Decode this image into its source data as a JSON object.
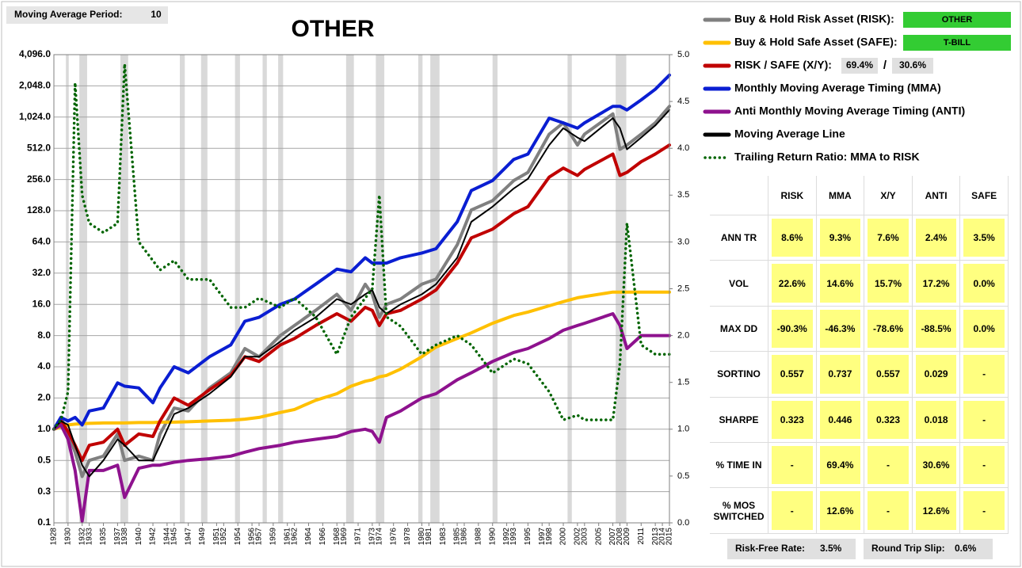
{
  "chart_data": {
    "type": "line",
    "title": "OTHER",
    "settings_box": {
      "label": "Moving Average Period:",
      "value": "10"
    },
    "x": [
      1928,
      1929,
      1930,
      1931,
      1932,
      1933,
      1935,
      1937,
      1938,
      1940,
      1942,
      1943,
      1945,
      1947,
      1950,
      1953,
      1955,
      1957,
      1960,
      1962,
      1965,
      1968,
      1970,
      1972,
      1973,
      1974,
      1975,
      1977,
      1980,
      1982,
      1985,
      1987,
      1990,
      1993,
      1995,
      1998,
      2000,
      2002,
      2003,
      2007,
      2008,
      2009,
      2011,
      2013,
      2015
    ],
    "xlim": [
      1928,
      2015
    ],
    "xticks": [
      1928,
      1930,
      1932,
      1933,
      1935,
      1937,
      1938,
      1940,
      1942,
      1944,
      1945,
      1947,
      1949,
      1951,
      1952,
      1954,
      1956,
      1957,
      1959,
      1961,
      1962,
      1964,
      1966,
      1968,
      1969,
      1971,
      1973,
      1974,
      1976,
      1978,
      1980,
      1981,
      1983,
      1985,
      1986,
      1988,
      1990,
      1992,
      1993,
      1995,
      1997,
      1998,
      2000,
      2002,
      2003,
      2005,
      2007,
      2008,
      2009,
      2011,
      2013,
      2014,
      2015
    ],
    "yscale": "log",
    "ylim": [
      0.125,
      4096
    ],
    "yticks": [
      {
        "value": 0.125,
        "label": "0.1"
      },
      {
        "value": 0.25,
        "label": "0.3"
      },
      0.5,
      {
        "value": 1,
        "label": "1.0"
      },
      {
        "value": 2,
        "label": "2.0"
      },
      {
        "value": 4,
        "label": "4.0"
      },
      {
        "value": 8,
        "label": "8.0"
      },
      {
        "value": 16,
        "label": "16.0"
      },
      {
        "value": 32,
        "label": "32.0"
      },
      {
        "value": 64,
        "label": "64.0"
      },
      {
        "value": 128,
        "label": "128.0"
      },
      {
        "value": 256,
        "label": "256.0"
      },
      {
        "value": 512,
        "label": "512.0"
      },
      {
        "value": 1024,
        "label": "1,024.0"
      },
      {
        "value": 2048,
        "label": "2,048.0"
      },
      {
        "value": 4096,
        "label": "4,096.0"
      }
    ],
    "y2lim": [
      0,
      5
    ],
    "y2ticks": [
      {
        "value": 0,
        "label": "0.0"
      },
      0.5,
      {
        "value": 1,
        "label": "1.0"
      },
      1.5,
      {
        "value": 2,
        "label": "2.0"
      },
      2.5,
      {
        "value": 3,
        "label": "3.0"
      },
      3.5,
      {
        "value": 4,
        "label": "4.0"
      },
      4.5,
      {
        "value": 5,
        "label": "5.0"
      }
    ],
    "grid": true,
    "shaded_color": "#d9d9d9",
    "shaded_periods": [
      [
        1929.7,
        1930.1
      ],
      [
        1931.6,
        1932.7
      ],
      [
        1937.4,
        1938.5
      ],
      [
        1945.8,
        1946.5
      ],
      [
        1948.8,
        1949.7
      ],
      [
        1953.6,
        1954.3
      ],
      [
        1957.5,
        1958.1
      ],
      [
        1959.7,
        1960.4
      ],
      [
        1969.3,
        1970.4
      ],
      [
        1973.5,
        1974.7
      ],
      [
        1979.5,
        1980.1
      ],
      [
        1981.2,
        1982.5
      ],
      [
        1990.0,
        1990.7
      ],
      [
        2000.6,
        2001.2
      ],
      [
        2007.4,
        2008.9
      ]
    ],
    "series": [
      {
        "name": "Buy & Hold Risk Asset (RISK):",
        "color": "#808080",
        "values": [
          1.0,
          1.3,
          0.9,
          0.6,
          0.35,
          0.5,
          0.55,
          0.9,
          0.5,
          0.55,
          0.5,
          0.9,
          1.6,
          1.5,
          2.5,
          3.5,
          6,
          5,
          8,
          10,
          14,
          20,
          14,
          25,
          20,
          12,
          16,
          18,
          25,
          28,
          60,
          130,
          160,
          250,
          300,
          700,
          900,
          550,
          700,
          1100,
          500,
          550,
          700,
          900,
          1300
        ]
      },
      {
        "name": "Buy & Hold Safe Asset (SAFE):",
        "color": "#ffc000",
        "values": [
          1.0,
          1.05,
          1.1,
          1.12,
          1.13,
          1.14,
          1.15,
          1.15,
          1.15,
          1.16,
          1.16,
          1.17,
          1.17,
          1.18,
          1.2,
          1.22,
          1.25,
          1.3,
          1.45,
          1.55,
          1.9,
          2.2,
          2.6,
          2.9,
          3.0,
          3.2,
          3.3,
          3.8,
          5,
          6.2,
          7.5,
          8.5,
          10.5,
          12.5,
          13.5,
          15.5,
          17,
          18.5,
          19,
          21,
          21,
          21,
          21,
          21,
          21
        ]
      },
      {
        "name": "RISK / SAFE (X/Y):",
        "color": "#c00000",
        "values": [
          1.0,
          1.2,
          0.95,
          0.7,
          0.5,
          0.7,
          0.75,
          1.0,
          0.7,
          0.9,
          0.85,
          1.2,
          2.0,
          1.7,
          2.4,
          3.3,
          5,
          4.5,
          6.5,
          7.5,
          10,
          13,
          11,
          15,
          14,
          10,
          13,
          14,
          18,
          22,
          40,
          70,
          85,
          120,
          140,
          270,
          330,
          280,
          320,
          450,
          280,
          300,
          380,
          450,
          550
        ]
      },
      {
        "name": "Monthly Moving Average Timing (MMA)",
        "color": "#0a1ed2",
        "values": [
          1.0,
          1.3,
          1.2,
          1.3,
          1.1,
          1.5,
          1.6,
          2.8,
          2.6,
          2.5,
          1.8,
          2.5,
          4,
          3.5,
          5,
          6.5,
          11,
          12,
          16,
          18,
          25,
          35,
          33,
          45,
          40,
          40,
          40,
          45,
          50,
          55,
          100,
          200,
          250,
          400,
          450,
          1000,
          900,
          800,
          900,
          1300,
          1300,
          1200,
          1500,
          1900,
          2600
        ]
      },
      {
        "name": "Anti Monthly Moving Average Timing (ANTI)",
        "color": "#8e128e",
        "values": [
          1.0,
          1.1,
          0.8,
          0.4,
          0.13,
          0.4,
          0.4,
          0.45,
          0.22,
          0.42,
          0.45,
          0.45,
          0.48,
          0.5,
          0.52,
          0.55,
          0.6,
          0.65,
          0.7,
          0.75,
          0.8,
          0.85,
          0.95,
          1.0,
          0.95,
          0.75,
          1.3,
          1.5,
          2.0,
          2.2,
          3,
          3.5,
          4.5,
          5.5,
          6,
          7.5,
          9,
          10,
          10.5,
          13,
          10,
          6,
          8,
          8,
          8
        ]
      },
      {
        "name": "Moving Average Line",
        "color": "#000000",
        "values": [
          1.0,
          1.2,
          1.1,
          0.7,
          0.45,
          0.35,
          0.5,
          0.8,
          0.7,
          0.5,
          0.5,
          0.7,
          1.4,
          1.6,
          2.2,
          3.2,
          5,
          5,
          7,
          9,
          12,
          18,
          16,
          20,
          22,
          15,
          13,
          16,
          20,
          25,
          45,
          100,
          140,
          210,
          260,
          550,
          800,
          650,
          600,
          1000,
          800,
          500,
          650,
          850,
          1200
        ]
      },
      {
        "name": "Trailing Return Ratio: MMA to RISK",
        "color": "#006400",
        "axis": "y2",
        "line_style": "dotted",
        "values": [
          1.0,
          1.1,
          1.4,
          4.7,
          3.5,
          3.2,
          3.1,
          3.2,
          4.9,
          3.0,
          2.8,
          2.7,
          2.8,
          2.6,
          2.6,
          2.3,
          2.3,
          2.4,
          2.3,
          2.4,
          2.2,
          1.8,
          2.2,
          2.4,
          2.5,
          3.5,
          2.2,
          2.1,
          1.8,
          1.9,
          2.0,
          1.9,
          1.6,
          1.75,
          1.7,
          1.4,
          1.1,
          1.15,
          1.1,
          1.1,
          1.7,
          3.2,
          1.9,
          1.8,
          1.8
        ]
      }
    ],
    "legend_boxes": {
      "risk_asset": "OTHER",
      "safe_asset": "T-BILL",
      "risk_weight": "69.4%",
      "separator": "/",
      "safe_weight": "30.6%",
      "box_color": "#33cc33"
    }
  },
  "stats_table": {
    "columns": [
      "RISK",
      "MMA",
      "X/Y",
      "ANTI",
      "SAFE"
    ],
    "rows": [
      {
        "label": "ANN TR",
        "cells": [
          "8.6%",
          "9.3%",
          "7.6%",
          "2.4%",
          "3.5%"
        ]
      },
      {
        "label": "VOL",
        "cells": [
          "22.6%",
          "14.6%",
          "15.7%",
          "17.2%",
          "0.0%"
        ]
      },
      {
        "label": "MAX DD",
        "cells": [
          "-90.3%",
          "-46.3%",
          "-78.6%",
          "-88.5%",
          "0.0%"
        ]
      },
      {
        "label": "SORTINO",
        "cells": [
          "0.557",
          "0.737",
          "0.557",
          "0.029",
          "-"
        ]
      },
      {
        "label": "SHARPE",
        "cells": [
          "0.323",
          "0.446",
          "0.323",
          "0.018",
          "-"
        ]
      },
      {
        "label": "% TIME IN",
        "cells": [
          "-",
          "69.4%",
          "-",
          "30.6%",
          "-"
        ]
      },
      {
        "label": "% MOS SWITCHED",
        "cells": [
          "-",
          "12.6%",
          "-",
          "12.6%",
          "-"
        ]
      }
    ]
  },
  "footer": {
    "risk_free_label": "Risk-Free Rate:",
    "risk_free_value": "3.5%",
    "slip_label": "Round Trip Slip:",
    "slip_value": "0.6%"
  }
}
